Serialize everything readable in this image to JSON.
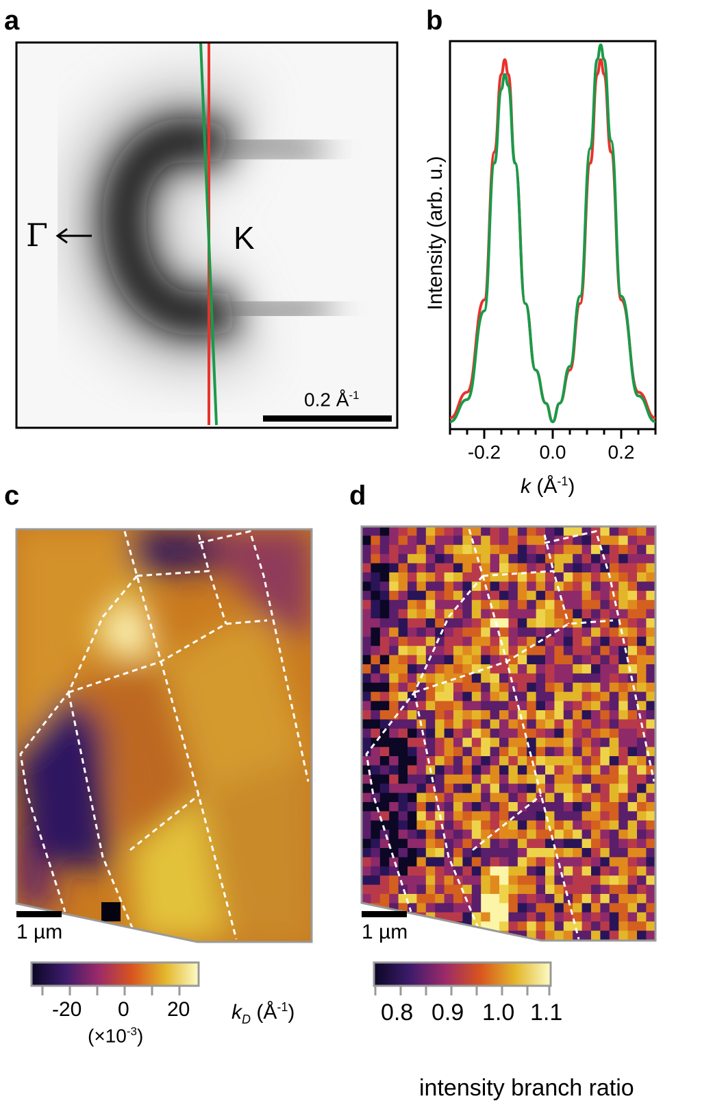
{
  "panels": {
    "a": {
      "label": "a",
      "gamma_label": "Γ",
      "k_label": "K",
      "scalebar_text": "0.2 Å",
      "scalebar_exp": "-1"
    },
    "b": {
      "label": "b",
      "ylabel": "Intensity (arb. u.)",
      "xlabel_var": "k",
      "xlabel_unit": " (Å",
      "xlabel_exp": "-1",
      "xlabel_close": ")"
    },
    "c": {
      "label": "c",
      "scalebar_text": "1 µm",
      "colorbar_ticks": [
        "-20",
        "0",
        "20"
      ],
      "colorbar_multiplier": "(×10",
      "colorbar_multiplier_exp": "-3",
      "colorbar_multiplier_close": ")",
      "colorbar_label_var": "k",
      "colorbar_label_sub": "D",
      "colorbar_label_unit": " (Å",
      "colorbar_label_exp": "-1",
      "colorbar_label_close": ")"
    },
    "d": {
      "label": "d",
      "scalebar_text": "1 µm",
      "colorbar_ticks": [
        "0.8",
        "0.9",
        "1.0",
        "1.1"
      ],
      "colorbar_label": "intensity branch ratio"
    }
  },
  "colors": {
    "red_trace": "#e8322b",
    "green_trace": "#1a9a4a",
    "dashed_boundary": "#ffffff",
    "frame_gray": "#999999"
  },
  "chart_data": [
    {
      "type": "line",
      "panel": "b",
      "xlabel": "k (Å-1)",
      "ylabel": "Intensity (arb. u.)",
      "xlim": [
        -0.3,
        0.3
      ],
      "ylim": [
        0,
        1.05
      ],
      "xticks": [
        "-0.2",
        "0.0",
        "0.2"
      ],
      "series": [
        {
          "color": "#e8322b",
          "x": [
            -0.3,
            -0.25,
            -0.2,
            -0.17,
            -0.15,
            -0.14,
            -0.13,
            -0.11,
            -0.08,
            -0.05,
            -0.02,
            0.0,
            0.02,
            0.05,
            0.08,
            0.11,
            0.13,
            0.14,
            0.15,
            0.17,
            0.2,
            0.25,
            0.3
          ],
          "y": [
            0.03,
            0.1,
            0.35,
            0.75,
            0.96,
            1.0,
            0.96,
            0.72,
            0.34,
            0.16,
            0.07,
            0.02,
            0.07,
            0.16,
            0.34,
            0.72,
            0.96,
            1.0,
            0.96,
            0.75,
            0.35,
            0.1,
            0.03
          ]
        },
        {
          "color": "#1a9a4a",
          "x": [
            -0.3,
            -0.25,
            -0.2,
            -0.17,
            -0.15,
            -0.14,
            -0.13,
            -0.11,
            -0.08,
            -0.05,
            -0.02,
            0.0,
            0.02,
            0.05,
            0.08,
            0.11,
            0.13,
            0.14,
            0.15,
            0.17,
            0.2,
            0.25,
            0.3
          ],
          "y": [
            0.02,
            0.08,
            0.32,
            0.72,
            0.92,
            0.96,
            0.93,
            0.72,
            0.34,
            0.16,
            0.07,
            0.02,
            0.07,
            0.17,
            0.36,
            0.76,
            1.0,
            1.04,
            1.0,
            0.78,
            0.36,
            0.09,
            0.02
          ]
        }
      ]
    }
  ]
}
